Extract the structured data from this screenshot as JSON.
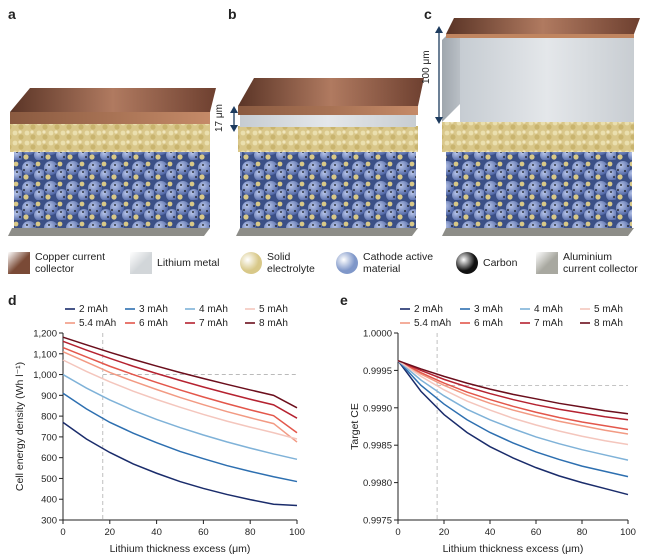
{
  "panels": {
    "a": "a",
    "b": "b",
    "c": "c",
    "d": "d",
    "e": "e"
  },
  "dims": {
    "b": "17 μm",
    "c": "100 μm"
  },
  "legend": [
    {
      "line1": "Copper current",
      "line2": "collector",
      "color": "#7a4a36"
    },
    {
      "line1": "Lithium metal",
      "line2": "",
      "color": "#d2d6d9"
    },
    {
      "line1": "Solid",
      "line2": "electrolyte",
      "color": "#d8c888"
    },
    {
      "line1": "Cathode active",
      "line2": "material",
      "color": "#7f97c9"
    },
    {
      "line1": "Carbon",
      "line2": "",
      "color": "#111111"
    },
    {
      "line1": "Aluminium",
      "line2": "current collector",
      "color": "#a8a8a0"
    }
  ],
  "series_colors": [
    "#1a2c6b",
    "#2d6fb0",
    "#7fb2d8",
    "#f4c6bd",
    "#f29a83",
    "#e3574b",
    "#b52230",
    "#6b0e1c"
  ],
  "chart_data": [
    {
      "type": "line",
      "xlabel": "Lithium thickness excess (μm)",
      "ylabel": "Cell energy density (Wh l⁻¹)",
      "xlim": [
        0,
        100
      ],
      "ylim": [
        300,
        1200
      ],
      "xticks": [
        0,
        20,
        40,
        60,
        80,
        100
      ],
      "yticks": [
        300,
        400,
        500,
        600,
        700,
        800,
        900,
        1000,
        1100,
        1200
      ],
      "ytick_labels": [
        "300",
        "400",
        "500",
        "600",
        "700",
        "800",
        "900",
        "1,000",
        "1,100",
        "1,200"
      ],
      "ref_x": 17,
      "ref_y": 1000,
      "x": [
        0,
        10,
        20,
        30,
        40,
        50,
        60,
        70,
        80,
        90,
        100
      ],
      "series": [
        {
          "name": "2 mAh",
          "values": [
            770,
            690,
            625,
            570,
            525,
            485,
            452,
            423,
            398,
            376,
            370
          ]
        },
        {
          "name": "5.4 mAh",
          "values": [
            1110,
            1060,
            1010,
            968,
            928,
            890,
            855,
            822,
            792,
            764,
            675
          ]
        },
        {
          "name": "3 mAh",
          "values": [
            910,
            835,
            770,
            718,
            672,
            630,
            595,
            562,
            534,
            508,
            485
          ]
        },
        {
          "name": "6 mAh",
          "values": [
            1130,
            1085,
            1040,
            1000,
            962,
            926,
            892,
            860,
            830,
            802,
            720
          ]
        },
        {
          "name": "4 mAh",
          "values": [
            1000,
            935,
            878,
            828,
            784,
            745,
            709,
            676,
            646,
            618,
            592
          ]
        },
        {
          "name": "7 mAh",
          "values": [
            1160,
            1118,
            1078,
            1040,
            1005,
            972,
            940,
            910,
            881,
            854,
            790
          ]
        },
        {
          "name": "5 mAh",
          "values": [
            1070,
            1015,
            965,
            920,
            880,
            843,
            808,
            776,
            747,
            720,
            690
          ]
        },
        {
          "name": "8 mAh",
          "values": [
            1180,
            1143,
            1107,
            1073,
            1041,
            1010,
            981,
            953,
            926,
            900,
            840
          ]
        }
      ]
    },
    {
      "type": "line",
      "xlabel": "Lithium thickness excess (μm)",
      "ylabel": "Target CE",
      "xlim": [
        0,
        100
      ],
      "ylim": [
        0.9975,
        1.0
      ],
      "xticks": [
        0,
        20,
        40,
        60,
        80,
        100
      ],
      "yticks": [
        0.9975,
        0.998,
        0.9985,
        0.999,
        0.9995,
        1.0
      ],
      "ytick_labels": [
        "0.9975",
        "0.9980",
        "0.9985",
        "0.9990",
        "0.9995",
        "1.0000"
      ],
      "ref_x": 17,
      "ref_y": 0.9993,
      "x": [
        0,
        10,
        20,
        30,
        40,
        50,
        60,
        70,
        80,
        90,
        100
      ],
      "series": [
        {
          "name": "2 mAh",
          "values": [
            0.99963,
            0.99922,
            0.99891,
            0.99867,
            0.99848,
            0.99833,
            0.9982,
            0.99809,
            0.998,
            0.99792,
            0.99784
          ]
        },
        {
          "name": "5.4 mAh",
          "values": [
            0.99963,
            0.99945,
            0.9993,
            0.99917,
            0.99906,
            0.99897,
            0.99889,
            0.99882,
            0.99876,
            0.9987,
            0.99865
          ]
        },
        {
          "name": "3 mAh",
          "values": [
            0.99963,
            0.9993,
            0.99905,
            0.99884,
            0.99867,
            0.99853,
            0.99841,
            0.99831,
            0.99822,
            0.99815,
            0.99808
          ]
        },
        {
          "name": "6 mAh",
          "values": [
            0.99963,
            0.99947,
            0.99933,
            0.99921,
            0.99911,
            0.99902,
            0.99894,
            0.99887,
            0.99881,
            0.99876,
            0.99871
          ]
        },
        {
          "name": "4 mAh",
          "values": [
            0.99963,
            0.99937,
            0.99916,
            0.99898,
            0.99884,
            0.99872,
            0.99861,
            0.99852,
            0.99844,
            0.99837,
            0.9983
          ]
        },
        {
          "name": "7 mAh",
          "values": [
            0.99963,
            0.9995,
            0.99938,
            0.99928,
            0.99919,
            0.99911,
            0.99904,
            0.99898,
            0.99893,
            0.99888,
            0.99884
          ]
        },
        {
          "name": "5 mAh",
          "values": [
            0.99963,
            0.99942,
            0.99924,
            0.99909,
            0.99897,
            0.99886,
            0.99877,
            0.99869,
            0.99862,
            0.99856,
            0.99851
          ]
        },
        {
          "name": "8 mAh",
          "values": [
            0.99963,
            0.99952,
            0.99942,
            0.99933,
            0.99925,
            0.99918,
            0.99912,
            0.99906,
            0.99901,
            0.99896,
            0.99892
          ]
        }
      ]
    }
  ]
}
